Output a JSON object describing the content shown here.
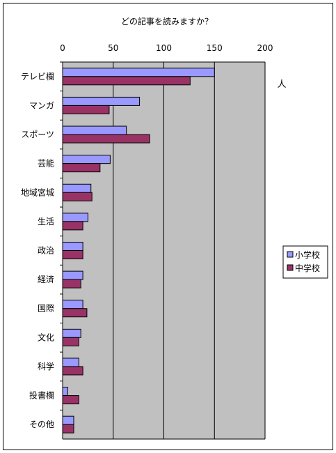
{
  "colors": {
    "plot_bg": "#c0c0c0",
    "series_1": "#9999ff",
    "series_2": "#993366",
    "border": "#000000"
  },
  "chart_data": {
    "type": "bar",
    "orientation": "horizontal",
    "title": "どの記事を読みますか？",
    "unit_label": "人",
    "xlim": [
      0,
      200
    ],
    "xticks": [
      0,
      50,
      100,
      150,
      200
    ],
    "grid": "vertical major gridlines",
    "legend_position": "right",
    "categories": [
      "テレビ欄",
      "マンガ",
      "スポーツ",
      "芸能",
      "地域宮城",
      "生活",
      "政治",
      "経済",
      "国際",
      "文化",
      "科学",
      "投書欄",
      "その他"
    ],
    "series": [
      {
        "name": "小学校",
        "values": [
          150,
          76,
          63,
          47,
          28,
          25,
          20,
          20,
          20,
          18,
          16,
          5,
          11
        ]
      },
      {
        "name": "中学校",
        "values": [
          126,
          46,
          86,
          37,
          29,
          20,
          20,
          18,
          24,
          16,
          20,
          16,
          11
        ]
      }
    ]
  }
}
